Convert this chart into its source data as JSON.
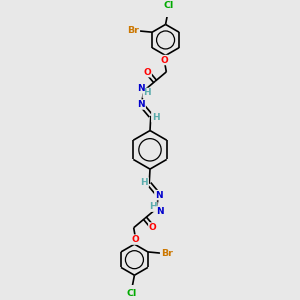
{
  "background_color": "#e8e8e8",
  "atom_colors": {
    "C": "#000000",
    "H": "#5aacac",
    "N": "#0000cc",
    "O": "#ff0000",
    "Br": "#cc7700",
    "Cl": "#00aa00"
  },
  "bond_color": "#000000",
  "bond_width": 1.2,
  "figsize": [
    3.0,
    3.0
  ],
  "dpi": 100,
  "xlim": [
    0,
    10
  ],
  "ylim": [
    0,
    10
  ]
}
